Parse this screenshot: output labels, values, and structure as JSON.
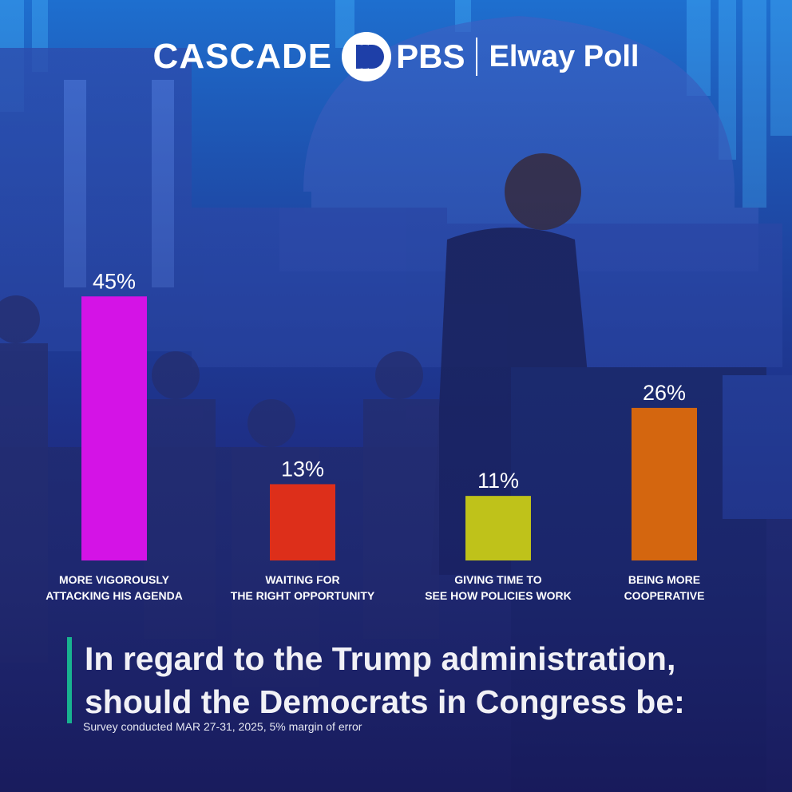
{
  "header": {
    "brand_cascade": "CASCADE",
    "brand_pbs": "PBS",
    "brand_poll": "Elway Poll"
  },
  "chart_data": {
    "type": "bar",
    "categories": [
      [
        "MORE VIGOROUSLY",
        "ATTACKING HIS AGENDA"
      ],
      [
        "WAITING FOR",
        "THE RIGHT OPPORTUNITY"
      ],
      [
        "GIVING TIME TO",
        "SEE HOW POLICIES WORK"
      ],
      [
        "BEING MORE",
        "COOPERATIVE"
      ]
    ],
    "values": [
      45,
      13,
      11,
      26
    ],
    "value_labels": [
      "45%",
      "13%",
      "11%",
      "26%"
    ],
    "colors": [
      "#d413e6",
      "#dd2f1a",
      "#bfc21a",
      "#d4660f"
    ],
    "title": "In regard to the Trump administration, should the Democrats in Congress be:",
    "note": "Survey conducted MAR 27-31, 2025, 5% margin of error"
  }
}
